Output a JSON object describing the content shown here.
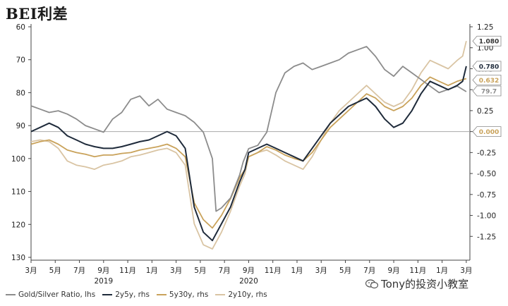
{
  "title": "BEI利差",
  "chart_data": {
    "type": "line",
    "left_axis": {
      "ticks": [
        60,
        70,
        80,
        90,
        100,
        110,
        120,
        130
      ],
      "range": [
        60,
        130
      ],
      "inverted": true
    },
    "right_axis": {
      "ticks": [
        "1.25",
        "1.00",
        "0.75",
        "0.50",
        "0.25",
        "0.00",
        "-0.25",
        "-0.50",
        "-0.75",
        "-1.00",
        "-1.25"
      ],
      "range": [
        -1.5,
        1.25
      ]
    },
    "x_labels": [
      "3月",
      "5月",
      "7月",
      "9月",
      "11月",
      "1月",
      "3月",
      "5月",
      "7月",
      "9月",
      "11月",
      "1月",
      "3月",
      "5月",
      "7月",
      "9月",
      "11月",
      "1月",
      "3月"
    ],
    "year_labels": [
      {
        "label": "2019",
        "at": 3
      },
      {
        "label": "2020",
        "at": 9
      }
    ],
    "x_range": [
      0,
      24.2
    ],
    "zero_line_rhs": 0.0,
    "grid": false,
    "legend_position": "bottom",
    "series": [
      {
        "name": "Gold/Silver Ratio, lhs",
        "axis": "left",
        "color": "#8c8c8c",
        "callout": "79.7",
        "points": [
          [
            0,
            84
          ],
          [
            0.5,
            85
          ],
          [
            1,
            86
          ],
          [
            1.5,
            85.5
          ],
          [
            2,
            86.5
          ],
          [
            2.5,
            88
          ],
          [
            3,
            90
          ],
          [
            3.5,
            91
          ],
          [
            4,
            92
          ],
          [
            4.5,
            88
          ],
          [
            5,
            86
          ],
          [
            5.5,
            82
          ],
          [
            6,
            81
          ],
          [
            6.5,
            84
          ],
          [
            7,
            82
          ],
          [
            7.5,
            85
          ],
          [
            8,
            86
          ],
          [
            8.5,
            87
          ],
          [
            9,
            89
          ],
          [
            9.5,
            92
          ],
          [
            10,
            100
          ],
          [
            10.2,
            116
          ],
          [
            10.5,
            115
          ],
          [
            11,
            112
          ],
          [
            11.5,
            105
          ],
          [
            11.7,
            101
          ],
          [
            12,
            97
          ],
          [
            12.5,
            96
          ],
          [
            13,
            92
          ],
          [
            13.5,
            80
          ],
          [
            14,
            74
          ],
          [
            14.5,
            72
          ],
          [
            15,
            71
          ],
          [
            15.5,
            73
          ],
          [
            16,
            72
          ],
          [
            16.5,
            71
          ],
          [
            17,
            70
          ],
          [
            17.5,
            68
          ],
          [
            18,
            67
          ],
          [
            18.5,
            66
          ],
          [
            19,
            69
          ],
          [
            19.5,
            73
          ],
          [
            20,
            75
          ],
          [
            20.5,
            72
          ],
          [
            21,
            74
          ],
          [
            21.5,
            76
          ],
          [
            22,
            78
          ],
          [
            22.5,
            80
          ],
          [
            23,
            79
          ],
          [
            23.5,
            78
          ],
          [
            24,
            79.7
          ]
        ]
      },
      {
        "name": "2y5y, rhs",
        "axis": "right",
        "color": "#1e2a3a",
        "callout": "0.780",
        "points": [
          [
            0,
            0.0
          ],
          [
            0.5,
            0.05
          ],
          [
            1,
            0.1
          ],
          [
            1.5,
            0.05
          ],
          [
            2,
            -0.05
          ],
          [
            2.5,
            -0.1
          ],
          [
            3,
            -0.15
          ],
          [
            3.5,
            -0.18
          ],
          [
            4,
            -0.2
          ],
          [
            4.5,
            -0.2
          ],
          [
            5,
            -0.18
          ],
          [
            5.5,
            -0.15
          ],
          [
            6,
            -0.12
          ],
          [
            6.5,
            -0.1
          ],
          [
            7,
            -0.05
          ],
          [
            7.5,
            0.0
          ],
          [
            8,
            -0.05
          ],
          [
            8.5,
            -0.2
          ],
          [
            9,
            -0.9
          ],
          [
            9.5,
            -1.2
          ],
          [
            10,
            -1.3
          ],
          [
            10.5,
            -1.1
          ],
          [
            11,
            -0.9
          ],
          [
            11.5,
            -0.6
          ],
          [
            11.8,
            -0.45
          ],
          [
            12,
            -0.25
          ],
          [
            12.5,
            -0.2
          ],
          [
            13,
            -0.15
          ],
          [
            13.5,
            -0.2
          ],
          [
            14,
            -0.25
          ],
          [
            14.5,
            -0.3
          ],
          [
            15,
            -0.35
          ],
          [
            15.5,
            -0.2
          ],
          [
            16,
            -0.05
          ],
          [
            16.5,
            0.1
          ],
          [
            17,
            0.2
          ],
          [
            17.5,
            0.3
          ],
          [
            18,
            0.35
          ],
          [
            18.5,
            0.4
          ],
          [
            19,
            0.3
          ],
          [
            19.5,
            0.15
          ],
          [
            20,
            0.05
          ],
          [
            20.5,
            0.1
          ],
          [
            21,
            0.25
          ],
          [
            21.5,
            0.45
          ],
          [
            22,
            0.6
          ],
          [
            22.5,
            0.55
          ],
          [
            23,
            0.5
          ],
          [
            23.5,
            0.55
          ],
          [
            23.8,
            0.6
          ],
          [
            24,
            0.78
          ]
        ]
      },
      {
        "name": "5y30y, rhs",
        "axis": "right",
        "color": "#c9a25a",
        "callout": "0.632",
        "points": [
          [
            0,
            -0.15
          ],
          [
            0.5,
            -0.12
          ],
          [
            1,
            -0.1
          ],
          [
            1.5,
            -0.15
          ],
          [
            2,
            -0.22
          ],
          [
            2.5,
            -0.25
          ],
          [
            3,
            -0.27
          ],
          [
            3.5,
            -0.3
          ],
          [
            4,
            -0.28
          ],
          [
            4.5,
            -0.28
          ],
          [
            5,
            -0.26
          ],
          [
            5.5,
            -0.25
          ],
          [
            6,
            -0.22
          ],
          [
            6.5,
            -0.2
          ],
          [
            7,
            -0.18
          ],
          [
            7.5,
            -0.15
          ],
          [
            8,
            -0.2
          ],
          [
            8.5,
            -0.3
          ],
          [
            9,
            -0.85
          ],
          [
            9.5,
            -1.05
          ],
          [
            10,
            -1.15
          ],
          [
            10.5,
            -1.0
          ],
          [
            11,
            -0.8
          ],
          [
            11.5,
            -0.55
          ],
          [
            11.8,
            -0.45
          ],
          [
            12,
            -0.3
          ],
          [
            12.5,
            -0.25
          ],
          [
            13,
            -0.18
          ],
          [
            13.5,
            -0.22
          ],
          [
            14,
            -0.28
          ],
          [
            14.5,
            -0.32
          ],
          [
            15,
            -0.35
          ],
          [
            15.5,
            -0.25
          ],
          [
            16,
            -0.1
          ],
          [
            16.5,
            0.05
          ],
          [
            17,
            0.15
          ],
          [
            17.5,
            0.25
          ],
          [
            18,
            0.35
          ],
          [
            18.5,
            0.45
          ],
          [
            19,
            0.4
          ],
          [
            19.5,
            0.3
          ],
          [
            20,
            0.25
          ],
          [
            20.5,
            0.3
          ],
          [
            21,
            0.4
          ],
          [
            21.5,
            0.55
          ],
          [
            22,
            0.65
          ],
          [
            22.5,
            0.6
          ],
          [
            23,
            0.55
          ],
          [
            23.5,
            0.6
          ],
          [
            24,
            0.632
          ]
        ]
      },
      {
        "name": "2y10y, rhs",
        "axis": "right",
        "color": "#d9c4a3",
        "callout": "1.080",
        "points": [
          [
            0,
            -0.12
          ],
          [
            0.5,
            -0.1
          ],
          [
            1,
            -0.12
          ],
          [
            1.5,
            -0.2
          ],
          [
            2,
            -0.35
          ],
          [
            2.5,
            -0.4
          ],
          [
            3,
            -0.42
          ],
          [
            3.5,
            -0.45
          ],
          [
            4,
            -0.4
          ],
          [
            4.5,
            -0.38
          ],
          [
            5,
            -0.35
          ],
          [
            5.5,
            -0.3
          ],
          [
            6,
            -0.28
          ],
          [
            6.5,
            -0.25
          ],
          [
            7,
            -0.22
          ],
          [
            7.5,
            -0.2
          ],
          [
            8,
            -0.25
          ],
          [
            8.5,
            -0.4
          ],
          [
            9,
            -1.1
          ],
          [
            9.5,
            -1.35
          ],
          [
            10,
            -1.4
          ],
          [
            10.5,
            -1.2
          ],
          [
            11,
            -0.95
          ],
          [
            11.5,
            -0.65
          ],
          [
            11.8,
            -0.5
          ],
          [
            12,
            -0.3
          ],
          [
            12.5,
            -0.25
          ],
          [
            13,
            -0.22
          ],
          [
            13.5,
            -0.28
          ],
          [
            14,
            -0.35
          ],
          [
            14.5,
            -0.4
          ],
          [
            15,
            -0.45
          ],
          [
            15.5,
            -0.3
          ],
          [
            16,
            -0.1
          ],
          [
            16.5,
            0.1
          ],
          [
            17,
            0.25
          ],
          [
            17.5,
            0.35
          ],
          [
            18,
            0.45
          ],
          [
            18.5,
            0.55
          ],
          [
            19,
            0.45
          ],
          [
            19.5,
            0.35
          ],
          [
            20,
            0.3
          ],
          [
            20.5,
            0.35
          ],
          [
            21,
            0.5
          ],
          [
            21.5,
            0.7
          ],
          [
            22,
            0.85
          ],
          [
            22.5,
            0.8
          ],
          [
            23,
            0.75
          ],
          [
            23.5,
            0.85
          ],
          [
            23.8,
            0.9
          ],
          [
            24,
            1.08
          ]
        ]
      }
    ],
    "zero_callout": "0.000"
  },
  "watermark": "Tony的投资小教室"
}
